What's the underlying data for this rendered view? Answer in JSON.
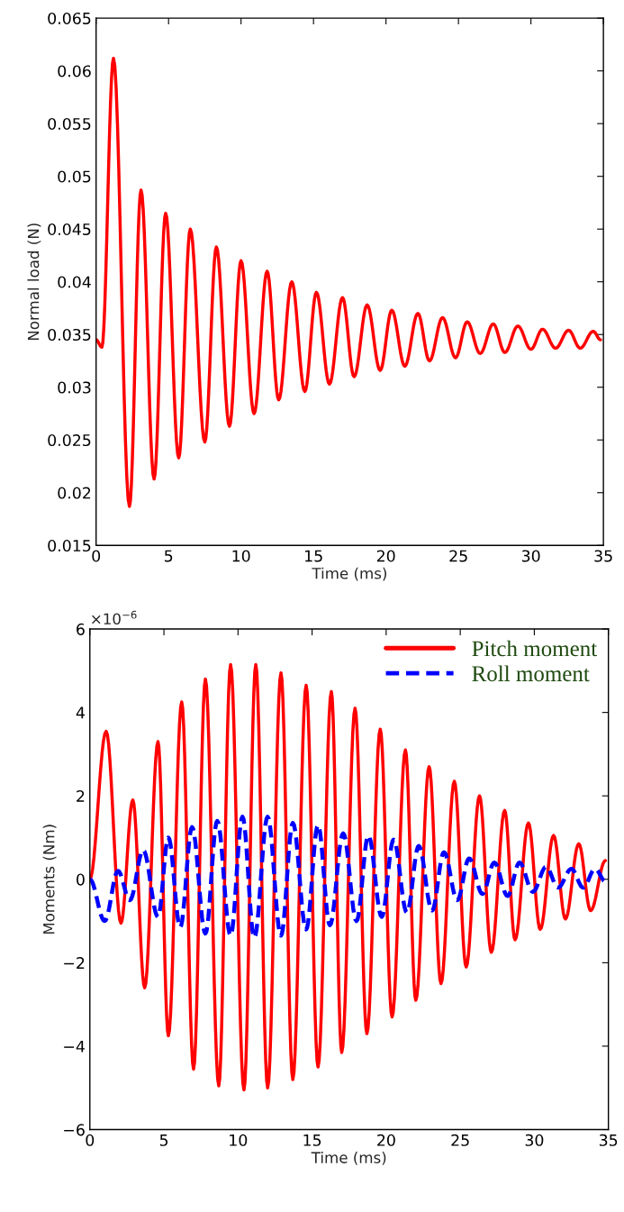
{
  "chart_data": [
    {
      "type": "line",
      "xlabel": "Time (ms)",
      "ylabel": "Normal load (N)",
      "xlim": [
        0,
        35
      ],
      "ylim": [
        0.015,
        0.065
      ],
      "xticks": [
        0,
        5,
        10,
        15,
        20,
        25,
        30,
        35
      ],
      "yticks": [
        {
          "value": 0.015,
          "label": "0.015"
        },
        {
          "value": 0.02,
          "label": "0.02"
        },
        {
          "value": 0.025,
          "label": "0.025"
        },
        {
          "value": 0.03,
          "label": "0.03"
        },
        {
          "value": 0.035,
          "label": "0.035"
        },
        {
          "value": 0.04,
          "label": "0.04"
        },
        {
          "value": 0.045,
          "label": "0.045"
        },
        {
          "value": 0.05,
          "label": "0.05"
        },
        {
          "value": 0.055,
          "label": "0.055"
        },
        {
          "value": 0.06,
          "label": "0.06"
        },
        {
          "value": 0.065,
          "label": "0.065"
        }
      ],
      "grid": false,
      "legend": false,
      "marker": "none",
      "series": [
        {
          "color": "#ff0000",
          "line_style": "solid",
          "x": [
            0,
            0.4,
            1.2,
            2.3,
            3.1,
            4.0,
            4.8,
            5.7,
            6.5,
            7.5,
            8.3,
            9.2,
            10.0,
            10.9,
            11.8,
            12.6,
            13.5,
            14.4,
            15.2,
            16.1,
            17.0,
            17.8,
            18.7,
            19.6,
            20.4,
            21.3,
            22.2,
            23.0,
            23.9,
            24.8,
            25.6,
            26.5,
            27.4,
            28.2,
            29.1,
            30.0,
            30.8,
            31.7,
            32.6,
            33.4,
            34.3,
            34.8
          ],
          "values": [
            0.0345,
            0.0338,
            0.0612,
            0.0187,
            0.0487,
            0.0213,
            0.0465,
            0.0233,
            0.045,
            0.0248,
            0.0433,
            0.0263,
            0.042,
            0.0275,
            0.041,
            0.0288,
            0.04,
            0.0296,
            0.039,
            0.0303,
            0.0385,
            0.031,
            0.0378,
            0.0316,
            0.0373,
            0.032,
            0.037,
            0.0325,
            0.0366,
            0.0328,
            0.0362,
            0.0332,
            0.036,
            0.0333,
            0.0358,
            0.0336,
            0.0355,
            0.0337,
            0.0354,
            0.0337,
            0.0353,
            0.0345
          ]
        }
      ]
    },
    {
      "type": "line",
      "xlabel": "Time (ms)",
      "ylabel": "Moments (Nm)",
      "annotations": [
        "×10$^{−6}$"
      ],
      "xlim": [
        0,
        35
      ],
      "ylim": [
        -6,
        6
      ],
      "xticks": [
        0,
        5,
        10,
        15,
        20,
        25,
        30,
        35
      ],
      "yticks": [
        {
          "value": -6,
          "label": "−6"
        },
        {
          "value": -4,
          "label": "−4"
        },
        {
          "value": -2,
          "label": "−2"
        },
        0,
        2,
        4,
        6
      ],
      "grid": false,
      "legend": "top right",
      "marker": "none",
      "series": [
        {
          "name": "Pitch moment",
          "color": "#ff0000",
          "line_style": "solid",
          "x": [
            0,
            1.1,
            2.1,
            2.9,
            3.7,
            4.6,
            5.3,
            6.2,
            7.0,
            7.8,
            8.7,
            9.5,
            10.4,
            11.2,
            12.0,
            12.9,
            13.7,
            14.6,
            15.4,
            16.3,
            17.0,
            17.9,
            18.7,
            19.6,
            20.4,
            21.3,
            22.0,
            22.9,
            23.7,
            24.6,
            25.4,
            26.3,
            27.1,
            28.0,
            28.7,
            29.6,
            30.4,
            31.3,
            32.1,
            33.0,
            33.8,
            34.8
          ],
          "values": [
            0,
            3.55,
            -1.05,
            1.9,
            -2.6,
            3.3,
            -3.75,
            4.25,
            -4.55,
            4.8,
            -4.95,
            5.15,
            -5.05,
            5.15,
            -5.0,
            4.95,
            -4.8,
            4.65,
            -4.5,
            4.5,
            -4.15,
            4.1,
            -3.7,
            3.6,
            -3.3,
            3.1,
            -2.9,
            2.7,
            -2.5,
            2.35,
            -2.1,
            2.0,
            -1.75,
            1.65,
            -1.45,
            1.35,
            -1.2,
            1.05,
            -0.95,
            0.85,
            -0.75,
            0.45
          ]
        },
        {
          "name": "Roll moment",
          "color": "#0000ff",
          "line_style": "dashed",
          "x": [
            0,
            1.0,
            1.9,
            2.7,
            3.6,
            4.6,
            5.3,
            6.1,
            6.9,
            7.8,
            8.6,
            9.5,
            10.3,
            11.1,
            12.0,
            12.9,
            13.7,
            14.6,
            15.4,
            16.2,
            17.1,
            18.0,
            18.8,
            19.7,
            20.5,
            21.4,
            22.2,
            23.1,
            23.9,
            24.8,
            25.6,
            26.5,
            27.3,
            28.2,
            29.0,
            29.9,
            30.8,
            31.6,
            32.5,
            33.3,
            34.1,
            34.8
          ],
          "values": [
            0,
            -1.0,
            0.2,
            -0.5,
            0.7,
            -0.9,
            1.0,
            -1.15,
            1.25,
            -1.3,
            1.4,
            -1.35,
            1.5,
            -1.4,
            1.5,
            -1.35,
            1.35,
            -1.2,
            1.3,
            -1.1,
            1.1,
            -1.0,
            1.05,
            -0.9,
            0.95,
            -0.8,
            0.8,
            -0.75,
            0.65,
            -0.5,
            0.5,
            -0.35,
            0.4,
            -0.4,
            0.4,
            -0.3,
            0.3,
            -0.2,
            0.25,
            -0.2,
            0.25,
            -0.05
          ]
        }
      ]
    }
  ]
}
